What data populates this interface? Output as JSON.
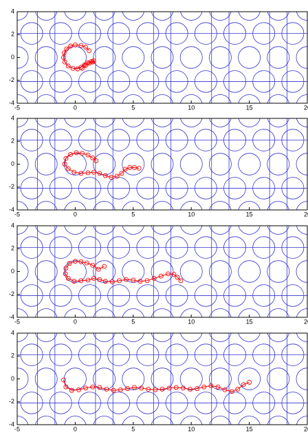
{
  "chart_data": [
    {
      "type": "scatter",
      "color": "#ff0000",
      "xlim": [
        -5,
        20
      ],
      "ylim": [
        -4,
        4
      ],
      "xticks": [
        -5,
        0,
        5,
        10,
        15,
        20
      ],
      "yticks": [
        -4,
        -2,
        0,
        2,
        4
      ],
      "x": [
        1.2,
        0.9,
        0.5,
        0,
        -0.4,
        -0.75,
        -0.95,
        -1.0,
        -0.9,
        -0.6,
        -0.2,
        0.2,
        0.5,
        0.8,
        1.1,
        1.4,
        1.6,
        1.5,
        1.2,
        0.9,
        0.6
      ],
      "values": [
        0.6,
        0.9,
        1.05,
        1.1,
        1.0,
        0.75,
        0.4,
        0,
        -0.4,
        -0.75,
        -0.95,
        -1.0,
        -0.85,
        -0.65,
        -0.45,
        -0.35,
        -0.3,
        -0.4,
        -0.5,
        -0.7,
        -0.95
      ]
    },
    {
      "type": "scatter",
      "color": "#ff0000",
      "xlim": [
        -5,
        20
      ],
      "ylim": [
        -4,
        4
      ],
      "xticks": [
        -5,
        0,
        5,
        10,
        15,
        20
      ],
      "yticks": [
        -4,
        -2,
        0,
        2,
        4
      ],
      "x": [
        1.8,
        1.5,
        1.1,
        0.6,
        0.1,
        -0.4,
        -0.8,
        -0.9,
        -0.6,
        -0.1,
        0.5,
        1.1,
        1.6,
        2.1,
        2.6,
        3.1,
        3.6,
        4.0,
        4.3,
        4.7,
        5.1,
        5.5
      ],
      "values": [
        0.3,
        0.55,
        0.8,
        0.95,
        1.0,
        0.85,
        0.5,
        0.0,
        -0.4,
        -0.7,
        -0.8,
        -0.75,
        -0.7,
        -0.8,
        -1.0,
        -1.15,
        -1.05,
        -0.8,
        -0.45,
        -0.3,
        -0.3,
        -0.35
      ]
    },
    {
      "type": "scatter",
      "color": "#ff0000",
      "xlim": [
        -5,
        20
      ],
      "ylim": [
        -4,
        4
      ],
      "xticks": [
        -5,
        0,
        5,
        10,
        15,
        20
      ],
      "yticks": [
        -4,
        -2,
        0,
        2,
        4
      ],
      "x": [
        2.5,
        2.0,
        1.5,
        1.0,
        0.5,
        0,
        -0.5,
        -0.8,
        -0.85,
        -0.6,
        -0.1,
        0.5,
        1.1,
        1.6,
        2.1,
        2.6,
        3.2,
        3.8,
        4.4,
        5.0,
        5.6,
        6.2,
        6.8,
        7.4,
        8.0,
        8.5,
        8.8,
        9.1
      ],
      "values": [
        0.45,
        0.2,
        0.55,
        0.75,
        0.85,
        0.9,
        0.7,
        0.3,
        -0.2,
        -0.6,
        -0.85,
        -0.8,
        -0.75,
        -0.6,
        -0.7,
        -0.85,
        -0.9,
        -0.8,
        -0.7,
        -0.75,
        -0.85,
        -0.8,
        -0.6,
        -0.4,
        -0.2,
        -0.25,
        -0.5,
        -0.8
      ]
    },
    {
      "type": "scatter",
      "color": "#ff0000",
      "xlim": [
        -5,
        20
      ],
      "ylim": [
        -4,
        4
      ],
      "xticks": [
        -5,
        0,
        5,
        10,
        15,
        20
      ],
      "yticks": [
        -4,
        -2,
        0,
        2,
        4
      ],
      "x": [
        -1.0,
        -0.8,
        -0.3,
        0.3,
        0.9,
        1.5,
        2.1,
        2.7,
        3.3,
        3.9,
        4.5,
        5.1,
        5.7,
        6.3,
        6.9,
        7.5,
        8.1,
        8.7,
        9.3,
        9.9,
        10.5,
        11.1,
        11.7,
        12.3,
        12.9,
        13.5,
        14.0,
        14.5,
        15.0
      ],
      "values": [
        -0.1,
        -0.7,
        -1.0,
        -0.95,
        -0.8,
        -0.7,
        -0.75,
        -0.9,
        -1.0,
        -0.95,
        -0.85,
        -0.75,
        -0.8,
        -0.9,
        -0.95,
        -0.9,
        -0.8,
        -0.75,
        -0.8,
        -0.9,
        -0.85,
        -0.7,
        -0.6,
        -0.7,
        -0.95,
        -1.1,
        -0.9,
        -0.5,
        -0.3
      ]
    }
  ]
}
